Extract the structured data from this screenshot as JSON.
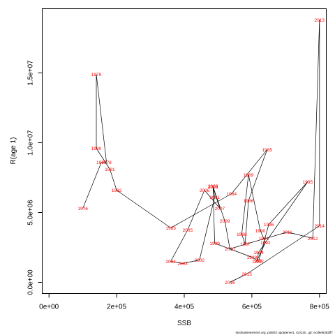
{
  "chart_data": {
    "type": "line",
    "title": "",
    "xlabel": "SSB",
    "ylabel": "R(age 1)",
    "xlim": [
      -20000,
      820000
    ],
    "ylim": [
      -800000,
      19600000
    ],
    "x_ticks": [
      0,
      200000,
      400000,
      600000,
      800000
    ],
    "x_tick_labels": [
      "0e+00",
      "2e+05",
      "4e+05",
      "6e+05",
      "8e+05"
    ],
    "y_ticks": [
      0,
      5000000,
      10000000,
      15000000
    ],
    "y_tick_labels": [
      "0.0e+00",
      "5.0e+06",
      "1.0e+07",
      "1.5e+07"
    ],
    "grid": false,
    "point_color": "#ff0000",
    "line_color": "#000000",
    "points": [
      {
        "year": "1976",
        "x": 100000,
        "y": 5300000
      },
      {
        "year": "1977",
        "x": 155000,
        "y": 8600000
      },
      {
        "year": "1978",
        "x": 170000,
        "y": 8600000
      },
      {
        "year": "1979",
        "x": 140000,
        "y": 14900000
      },
      {
        "year": "1980",
        "x": 140000,
        "y": 9600000
      },
      {
        "year": "1981",
        "x": 180000,
        "y": 8100000
      },
      {
        "year": "1982",
        "x": 200000,
        "y": 6600000
      },
      {
        "year": "1983",
        "x": 360000,
        "y": 3900000
      },
      {
        "year": "1984",
        "x": 540000,
        "y": 6350000
      },
      {
        "year": "1985",
        "x": 645000,
        "y": 9500000
      },
      {
        "year": "1986",
        "x": 590000,
        "y": 5850000
      },
      {
        "year": "1987",
        "x": 580000,
        "y": 2750000
      },
      {
        "year": "1988",
        "x": 570000,
        "y": 3450000
      },
      {
        "year": "1989",
        "x": 590000,
        "y": 7700000
      },
      {
        "year": "1990",
        "x": 625000,
        "y": 3700000
      },
      {
        "year": "1991",
        "x": 635000,
        "y": 3150000
      },
      {
        "year": "1992",
        "x": 640000,
        "y": 2850000
      },
      {
        "year": "1993",
        "x": 615000,
        "y": 1550000
      },
      {
        "year": "1994",
        "x": 620000,
        "y": 2150000
      },
      {
        "year": "1995",
        "x": 765000,
        "y": 7200000
      },
      {
        "year": "1996",
        "x": 650000,
        "y": 4150000
      },
      {
        "year": "1997",
        "x": 620000,
        "y": 1500000
      },
      {
        "year": "1998",
        "x": 600000,
        "y": 1800000
      },
      {
        "year": "1999",
        "x": 490000,
        "y": 2800000
      },
      {
        "year": "2000",
        "x": 485000,
        "y": 6900000
      },
      {
        "year": "2001",
        "x": 490000,
        "y": 6100000
      },
      {
        "year": "2002",
        "x": 445000,
        "y": 1600000
      },
      {
        "year": "2003",
        "x": 395000,
        "y": 1350000
      },
      {
        "year": "2004",
        "x": 360000,
        "y": 1500000
      },
      {
        "year": "2005",
        "x": 410000,
        "y": 3750000
      },
      {
        "year": "2006",
        "x": 460000,
        "y": 6600000
      },
      {
        "year": "2007",
        "x": 505000,
        "y": 5300000
      },
      {
        "year": "2008",
        "x": 485000,
        "y": 6850000
      },
      {
        "year": "2009",
        "x": 520000,
        "y": 4400000
      },
      {
        "year": "2010",
        "x": 535000,
        "y": 2400000
      },
      {
        "year": "2011",
        "x": 705000,
        "y": 3600000
      },
      {
        "year": "2012",
        "x": 780000,
        "y": 3150000
      },
      {
        "year": "2013",
        "x": 800000,
        "y": 18800000
      },
      {
        "year": "2014",
        "x": 800000,
        "y": 4050000
      },
      {
        "year": "2015",
        "x": 585000,
        "y": 600000
      },
      {
        "year": "2016",
        "x": 535000,
        "y": 0
      }
    ]
  },
  "footer": "stockassessment.org, pol802 updateree1, r10115 , git: ecd9e6382ff7"
}
